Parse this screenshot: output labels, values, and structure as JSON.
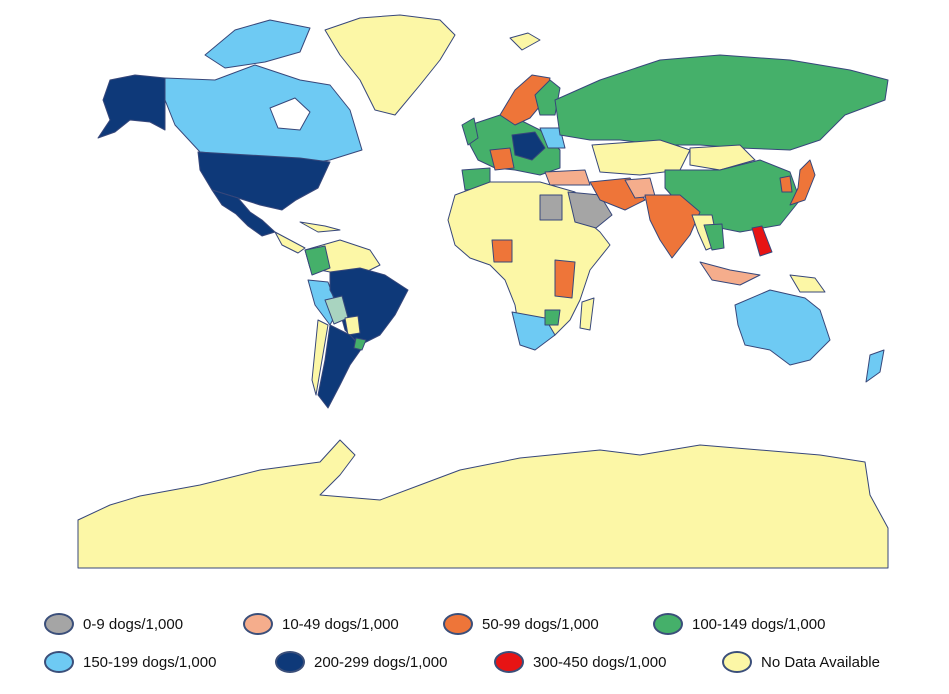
{
  "colors": {
    "ocean": "#ffffff",
    "border": "#37477a",
    "no_data": "#fcf7a6",
    "c0_9": "#a5a5a5",
    "c10_49": "#f5ad8c",
    "c50_99": "#ee7539",
    "c100_149": "#45b06a",
    "c150_199": "#6ecaf3",
    "c200_299": "#0e3979",
    "c300_450": "#e71414"
  },
  "legend": [
    {
      "label": "0-9 dogs/1,000",
      "color": "#a5a5a5"
    },
    {
      "label": "10-49 dogs/1,000",
      "color": "#f5ad8c"
    },
    {
      "label": "50-99 dogs/1,000",
      "color": "#ee7539"
    },
    {
      "label": "100-149 dogs/1,000",
      "color": "#45b06a"
    },
    {
      "label": "150-199 dogs/1,000",
      "color": "#6ecaf3"
    },
    {
      "label": "200-299 dogs/1,000",
      "color": "#0e3979"
    },
    {
      "label": "300-450 dogs/1,000",
      "color": "#e71414"
    },
    {
      "label": "No Data Available",
      "color": "#fcf7a6"
    }
  ]
}
